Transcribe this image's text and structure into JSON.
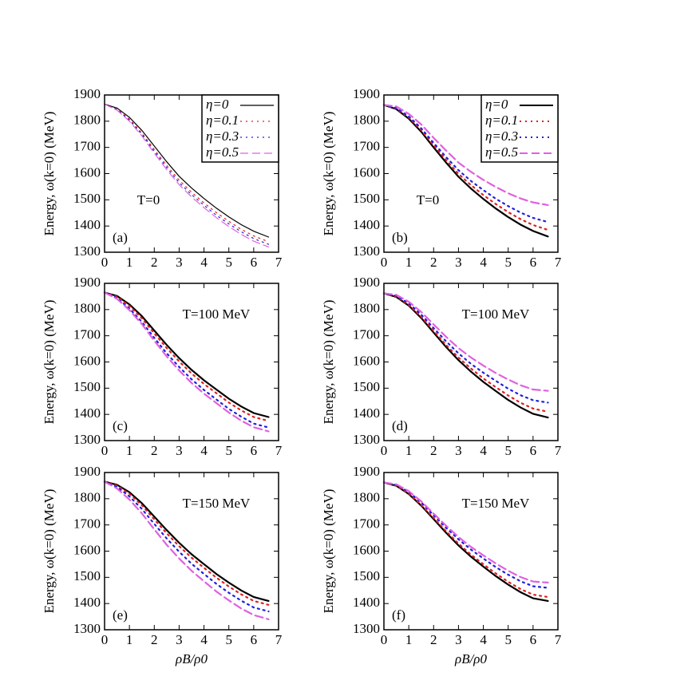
{
  "chart_data": [
    {
      "type": "line",
      "ylabel": "Energy, ω(k=0) (MeV)",
      "annotations": [
        "T=0",
        "(a)"
      ],
      "legend": "upper right",
      "x": [
        0,
        0.5,
        1,
        1.5,
        2,
        2.5,
        3,
        3.5,
        4,
        4.5,
        5,
        5.5,
        6,
        6.6
      ],
      "xlim": [
        0,
        7
      ],
      "xticks": [
        0,
        1,
        2,
        3,
        4,
        5,
        6,
        7
      ],
      "ylim": [
        1300,
        1900
      ],
      "yticks": [
        1300,
        1400,
        1500,
        1600,
        1700,
        1800,
        1900
      ],
      "series": [
        {
          "name": "η=0",
          "color": "#000000",
          "dash": "solid",
          "values": [
            1865,
            1850,
            1815,
            1765,
            1705,
            1645,
            1590,
            1545,
            1505,
            1468,
            1435,
            1405,
            1380,
            1358
          ]
        },
        {
          "name": "η=0.1",
          "color": "#e02020",
          "dash": "dotted",
          "values": [
            1865,
            1846,
            1808,
            1755,
            1692,
            1631,
            1575,
            1529,
            1488,
            1451,
            1418,
            1387,
            1362,
            1340
          ]
        },
        {
          "name": "η=0.3",
          "color": "#2020e0",
          "dash": "dotted",
          "values": [
            1865,
            1844,
            1804,
            1750,
            1685,
            1623,
            1566,
            1520,
            1479,
            1441,
            1408,
            1378,
            1352,
            1330
          ]
        },
        {
          "name": "η=0.5",
          "color": "#e060e0",
          "dash": "dashed",
          "values": [
            1865,
            1842,
            1800,
            1744,
            1678,
            1615,
            1558,
            1511,
            1470,
            1432,
            1398,
            1368,
            1342,
            1320
          ]
        }
      ]
    },
    {
      "type": "line",
      "ylabel": "Energy, ω(k=0) (MeV)",
      "annotations": [
        "T=0",
        "(b)"
      ],
      "legend": "upper right",
      "x": [
        0,
        0.5,
        1,
        1.5,
        2,
        2.5,
        3,
        3.5,
        4,
        4.5,
        5,
        5.5,
        6,
        6.6
      ],
      "xlim": [
        0,
        7
      ],
      "xticks": [
        0,
        1,
        2,
        3,
        4,
        5,
        6,
        7
      ],
      "ylim": [
        1300,
        1900
      ],
      "yticks": [
        1300,
        1400,
        1500,
        1600,
        1700,
        1800,
        1900
      ],
      "series": [
        {
          "name": "η=0",
          "color": "#000000",
          "dash": "solid",
          "values": [
            1862,
            1846,
            1810,
            1760,
            1700,
            1642,
            1588,
            1543,
            1503,
            1467,
            1434,
            1405,
            1381,
            1360
          ]
        },
        {
          "name": "η=0.1",
          "color": "#e02020",
          "dash": "dotted",
          "values": [
            1862,
            1848,
            1814,
            1766,
            1708,
            1652,
            1599,
            1556,
            1518,
            1484,
            1453,
            1426,
            1404,
            1385
          ]
        },
        {
          "name": "η=0.3",
          "color": "#2020e0",
          "dash": "dotted",
          "values": [
            1862,
            1850,
            1818,
            1773,
            1717,
            1663,
            1613,
            1572,
            1537,
            1504,
            1476,
            1451,
            1431,
            1415
          ]
        },
        {
          "name": "η=0.5",
          "color": "#e060e0",
          "dash": "dashed",
          "values": [
            1862,
            1856,
            1828,
            1788,
            1736,
            1688,
            1642,
            1607,
            1576,
            1549,
            1525,
            1505,
            1490,
            1480
          ]
        }
      ]
    },
    {
      "type": "line",
      "ylabel": "Energy, ω(k=0) (MeV)",
      "annotations": [
        "T=100 MeV",
        "(c)"
      ],
      "x": [
        0,
        0.5,
        1,
        1.5,
        2,
        2.5,
        3,
        3.5,
        4,
        4.5,
        5,
        5.5,
        6,
        6.6
      ],
      "xlim": [
        0,
        7
      ],
      "xticks": [
        0,
        1,
        2,
        3,
        4,
        5,
        6,
        7
      ],
      "ylim": [
        1300,
        1900
      ],
      "yticks": [
        1300,
        1400,
        1500,
        1600,
        1700,
        1800,
        1900
      ],
      "series": [
        {
          "name": "η=0",
          "color": "#000000",
          "dash": "solid",
          "values": [
            1865,
            1852,
            1820,
            1775,
            1720,
            1665,
            1615,
            1570,
            1530,
            1495,
            1460,
            1430,
            1405,
            1390
          ]
        },
        {
          "name": "η=0.1",
          "color": "#e02020",
          "dash": "dotted",
          "values": [
            1865,
            1849,
            1814,
            1767,
            1709,
            1653,
            1602,
            1556,
            1516,
            1481,
            1445,
            1415,
            1390,
            1375
          ]
        },
        {
          "name": "η=0.3",
          "color": "#2020e0",
          "dash": "dotted",
          "values": [
            1865,
            1844,
            1804,
            1753,
            1692,
            1633,
            1581,
            1534,
            1493,
            1457,
            1421,
            1391,
            1365,
            1350
          ]
        },
        {
          "name": "η=0.5",
          "color": "#e060e0",
          "dash": "dashed",
          "values": [
            1865,
            1841,
            1798,
            1745,
            1681,
            1621,
            1568,
            1520,
            1479,
            1443,
            1407,
            1376,
            1351,
            1335
          ]
        }
      ]
    },
    {
      "type": "line",
      "ylabel": "Energy, ω(k=0) (MeV)",
      "annotations": [
        "T=100 MeV",
        "(d)"
      ],
      "x": [
        0,
        0.5,
        1,
        1.5,
        2,
        2.5,
        3,
        3.5,
        4,
        4.5,
        5,
        5.5,
        6,
        6.6
      ],
      "xlim": [
        0,
        7
      ],
      "xticks": [
        0,
        1,
        2,
        3,
        4,
        5,
        6,
        7
      ],
      "ylim": [
        1300,
        1900
      ],
      "yticks": [
        1300,
        1400,
        1500,
        1600,
        1700,
        1800,
        1900
      ],
      "series": [
        {
          "name": "η=0",
          "color": "#000000",
          "dash": "solid",
          "values": [
            1862,
            1848,
            1815,
            1768,
            1712,
            1657,
            1607,
            1563,
            1524,
            1489,
            1455,
            1426,
            1402,
            1388
          ]
        },
        {
          "name": "η=0.1",
          "color": "#e02020",
          "dash": "dotted",
          "values": [
            1862,
            1850,
            1818,
            1773,
            1719,
            1665,
            1617,
            1575,
            1537,
            1504,
            1472,
            1444,
            1422,
            1410
          ]
        },
        {
          "name": "η=0.3",
          "color": "#2020e0",
          "dash": "dotted",
          "values": [
            1862,
            1853,
            1824,
            1781,
            1729,
            1679,
            1633,
            1593,
            1559,
            1528,
            1498,
            1473,
            1454,
            1445
          ]
        },
        {
          "name": "η=0.5",
          "color": "#e060e0",
          "dash": "dashed",
          "values": [
            1862,
            1856,
            1830,
            1791,
            1743,
            1696,
            1653,
            1617,
            1586,
            1558,
            1533,
            1511,
            1495,
            1490
          ]
        }
      ]
    },
    {
      "type": "line",
      "ylabel": "Energy, ω(k=0) (MeV)",
      "xlabel": "ρB/ρ0",
      "annotations": [
        "T=150 MeV",
        "(e)"
      ],
      "x": [
        0,
        0.5,
        1,
        1.5,
        2,
        2.5,
        3,
        3.5,
        4,
        4.5,
        5,
        5.5,
        6,
        6.6
      ],
      "xlim": [
        0,
        7
      ],
      "xticks": [
        0,
        1,
        2,
        3,
        4,
        5,
        6,
        7
      ],
      "ylim": [
        1300,
        1900
      ],
      "yticks": [
        1300,
        1400,
        1500,
        1600,
        1700,
        1800,
        1900
      ],
      "series": [
        {
          "name": "η=0",
          "color": "#000000",
          "dash": "solid",
          "values": [
            1865,
            1853,
            1825,
            1783,
            1732,
            1680,
            1632,
            1588,
            1550,
            1513,
            1480,
            1450,
            1425,
            1410
          ]
        },
        {
          "name": "η=0.1",
          "color": "#e02020",
          "dash": "dotted",
          "values": [
            1865,
            1850,
            1819,
            1775,
            1721,
            1668,
            1619,
            1575,
            1536,
            1499,
            1465,
            1435,
            1410,
            1395
          ]
        },
        {
          "name": "η=0.3",
          "color": "#2020e0",
          "dash": "dotted",
          "values": [
            1865,
            1845,
            1809,
            1761,
            1704,
            1648,
            1598,
            1552,
            1513,
            1475,
            1441,
            1411,
            1385,
            1370
          ]
        },
        {
          "name": "η=0.5",
          "color": "#e060e0",
          "dash": "dashed",
          "values": [
            1865,
            1839,
            1797,
            1744,
            1683,
            1624,
            1572,
            1525,
            1485,
            1446,
            1412,
            1381,
            1356,
            1340
          ]
        }
      ]
    },
    {
      "type": "line",
      "ylabel": "Energy, ω(k=0) (MeV)",
      "xlabel": "ρB/ρ0",
      "annotations": [
        "T=150 MeV",
        "(f)"
      ],
      "x": [
        0,
        0.5,
        1,
        1.5,
        2,
        2.5,
        3,
        3.5,
        4,
        4.5,
        5,
        5.5,
        6,
        6.6
      ],
      "xlim": [
        0,
        7
      ],
      "xticks": [
        0,
        1,
        2,
        3,
        4,
        5,
        6,
        7
      ],
      "ylim": [
        1300,
        1900
      ],
      "yticks": [
        1300,
        1400,
        1500,
        1600,
        1700,
        1800,
        1900
      ],
      "series": [
        {
          "name": "η=0",
          "color": "#000000",
          "dash": "solid",
          "values": [
            1862,
            1849,
            1818,
            1774,
            1722,
            1670,
            1622,
            1579,
            1541,
            1505,
            1472,
            1443,
            1420,
            1410
          ]
        },
        {
          "name": "η=0.1",
          "color": "#e02020",
          "dash": "dotted",
          "values": [
            1862,
            1850,
            1820,
            1777,
            1727,
            1676,
            1629,
            1587,
            1550,
            1515,
            1483,
            1455,
            1434,
            1425
          ]
        },
        {
          "name": "η=0.3",
          "color": "#2020e0",
          "dash": "dotted",
          "values": [
            1862,
            1853,
            1826,
            1786,
            1737,
            1689,
            1645,
            1606,
            1572,
            1539,
            1510,
            1485,
            1466,
            1460
          ]
        },
        {
          "name": "η=0.5",
          "color": "#e060e0",
          "dash": "dashed",
          "values": [
            1862,
            1855,
            1829,
            1790,
            1743,
            1697,
            1654,
            1616,
            1584,
            1553,
            1525,
            1501,
            1484,
            1480
          ]
        }
      ]
    }
  ]
}
